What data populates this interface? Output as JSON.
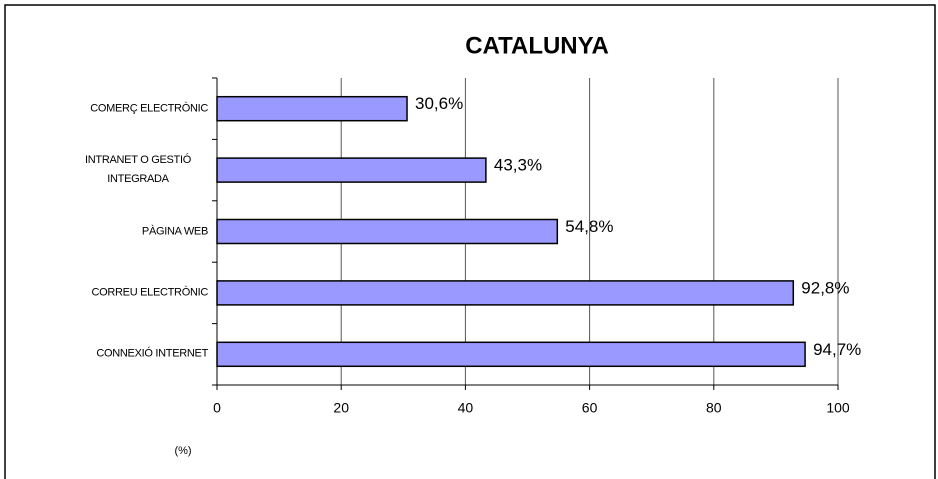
{
  "chart_data": {
    "type": "bar",
    "orientation": "horizontal",
    "title": "CATALUNYA",
    "categories": [
      "COMERÇ ELECTRÒNIC",
      "INTRANET O GESTIÓ INTEGRADA",
      "PÀGINA WEB",
      "CORREU ELECTRÒNIC",
      "CONNEXIÓ INTERNET"
    ],
    "values": [
      30.6,
      43.3,
      54.8,
      92.8,
      94.7
    ],
    "value_labels": [
      "30,6%",
      "43,3%",
      "54,8%",
      "92,8%",
      "94,7%"
    ],
    "color": "#9999ff",
    "xlim": [
      0,
      100
    ],
    "xticks": [
      0,
      20,
      40,
      60,
      80,
      100
    ],
    "grid": true,
    "x_label": "(%)"
  }
}
